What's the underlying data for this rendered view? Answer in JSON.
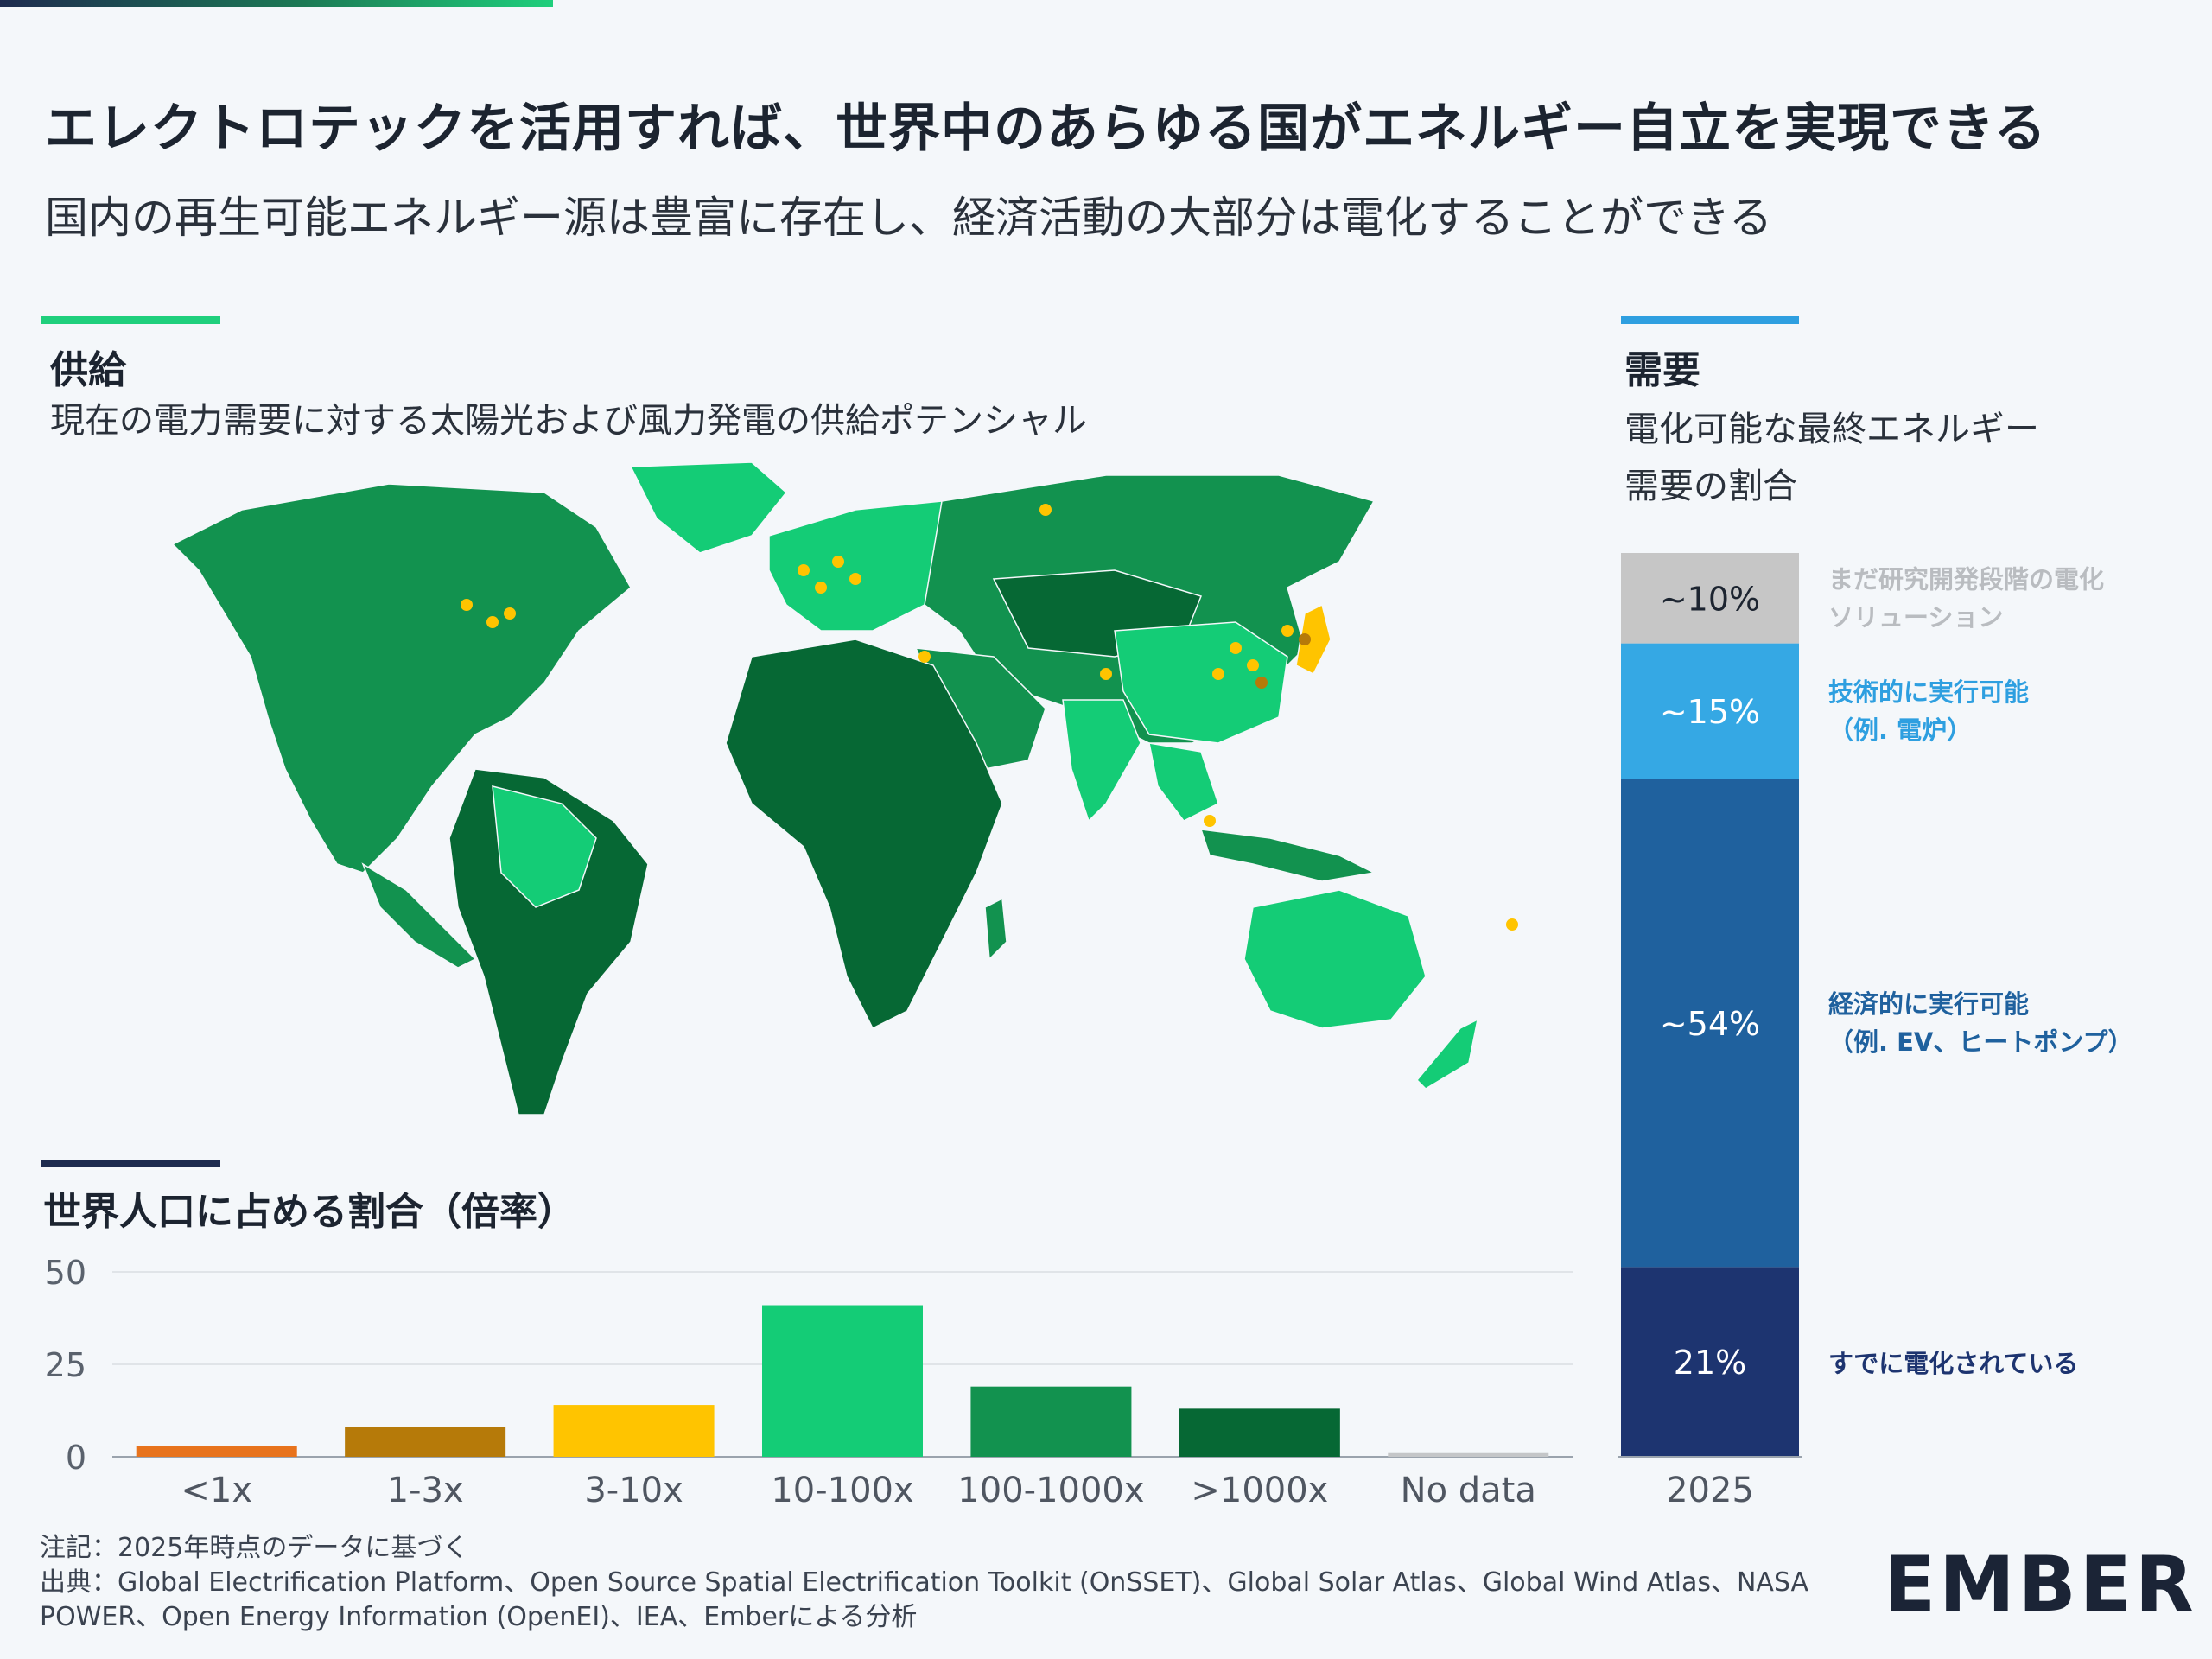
{
  "header": {
    "title": "エレクトロテックを活用すれば、世界中のあらゆる国がエネルギー自立を実現できる",
    "subtitle": "国内の再生可能エネルギー源は豊富に存在し、経済活動の大部分は電化することができる"
  },
  "supply": {
    "heading": "供給",
    "subheading": "現在の電力需要に対する太陽光および風力発電の供給ポテンシャル"
  },
  "demand": {
    "heading": "需要",
    "subheading_line1": "電化可能な最終エネルギー",
    "subheading_line2": "需要の割合"
  },
  "population": {
    "heading": "世界人口に占める割合（倍率）"
  },
  "colors": {
    "accent_green": "#1fcf7c",
    "accent_blue": "#2e9fe0",
    "accent_navy": "#1d2b4f",
    "lt1": "#e8731c",
    "x1_3": "#b67a09",
    "x3_10": "#ffc400",
    "x10_100": "#14cc76",
    "x100_1000": "#12924f",
    "gt1000": "#066834",
    "nodata": "#c4c6c8"
  },
  "chart_data": [
    {
      "type": "bar",
      "title": "世界人口に占める割合（倍率）",
      "categories": [
        "<1x",
        "1-3x",
        "3-10x",
        "10-100x",
        "100-1000x",
        ">1000x",
        "No data"
      ],
      "values": [
        3,
        8,
        14,
        41,
        19,
        13,
        1
      ],
      "ylim": [
        0,
        50
      ],
      "yticks": [
        0,
        25,
        50
      ],
      "colors": [
        "#e8731c",
        "#b67a09",
        "#ffc400",
        "#14cc76",
        "#12924f",
        "#066834",
        "#c4c6c8"
      ],
      "grid": true
    },
    {
      "type": "bar",
      "stacked": true,
      "title": "需要",
      "categories": [
        "2025"
      ],
      "series": [
        {
          "name": "すでに電化されている",
          "value": 21,
          "label": "21%",
          "color": "#1d3470"
        },
        {
          "name": "経済的に実行可能",
          "name2": "（例. EV、ヒートポンプ）",
          "value": 54,
          "label": "~54%",
          "color": "#1f619e"
        },
        {
          "name": "技術的に実行可能",
          "name2": "（例. 電炉）",
          "value": 15,
          "label": "~15%",
          "color": "#35a8e4"
        },
        {
          "name": "まだ研究開発段階の電化",
          "name2": "ソリューション",
          "value": 10,
          "label": "~10%",
          "color": "#c6c6c6"
        }
      ]
    }
  ],
  "footer": {
    "note": "注記：2025年時点のデータに基づく",
    "source_line1": "出典：Global Electrification Platform、Open Source Spatial Electrification Toolkit (OnSSET)、Global Solar Atlas、Global Wind Atlas、NASA",
    "source_line2": "POWER、Open Energy Information (OpenEI)、IEA、Emberによる分析",
    "logo": "EMBER"
  }
}
